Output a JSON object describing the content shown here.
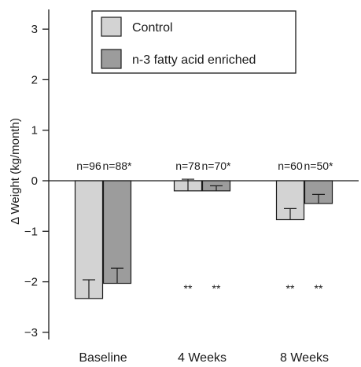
{
  "chart_data": {
    "type": "bar",
    "ylabel": "Δ Weight (kg/month)",
    "ylim": [
      -3.3,
      3.5
    ],
    "yticks": [
      3,
      2,
      1,
      0,
      -1,
      -2,
      -3
    ],
    "ytick_labels": [
      "3",
      "2",
      "1",
      "0",
      "−1",
      "−2",
      "−3"
    ],
    "categories": [
      "Baseline",
      "4 Weeks",
      "8 Weeks"
    ],
    "series": [
      {
        "name": "Control",
        "color": "#d3d3d3",
        "values": [
          -2.33,
          -0.2,
          -0.77
        ],
        "errors": [
          0.37,
          0.23,
          0.22
        ],
        "n_labels": [
          "n=96",
          "n=78",
          "n=60"
        ],
        "significance": [
          "",
          "**",
          "**"
        ]
      },
      {
        "name": "n-3 fatty acid enriched",
        "color": "#9c9c9c",
        "values": [
          -2.03,
          -0.2,
          -0.45
        ],
        "errors": [
          0.3,
          0.1,
          0.18
        ],
        "n_labels": [
          "n=88*",
          "n=70*",
          "n=50*"
        ],
        "significance": [
          "",
          "**",
          "**"
        ]
      }
    ],
    "legend_position": "top",
    "grid": false
  }
}
